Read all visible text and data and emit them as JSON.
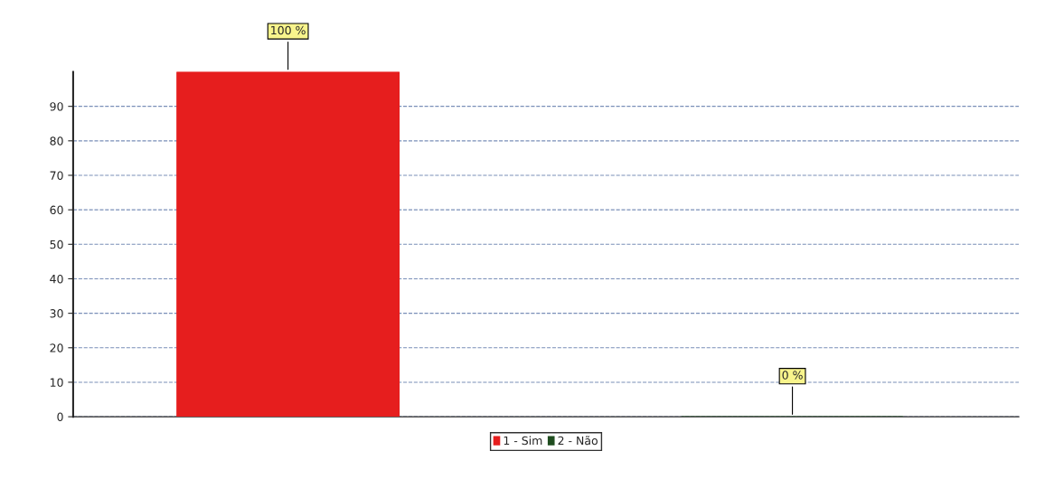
{
  "chart_data": {
    "type": "bar",
    "categories": [
      null,
      null
    ],
    "series": [
      {
        "name": "1 - Sim",
        "color": "#e61e1e",
        "values": [
          100,
          null
        ]
      },
      {
        "name": "2 - Não",
        "color": "#1f4d1f",
        "values": [
          null,
          0
        ]
      }
    ],
    "value_labels": [
      "100 %",
      "0 %"
    ],
    "ylim": [
      0,
      100
    ],
    "yticks": [
      0,
      10,
      20,
      30,
      40,
      50,
      60,
      70,
      80,
      90
    ],
    "grid": "y",
    "legend": "bottom"
  }
}
